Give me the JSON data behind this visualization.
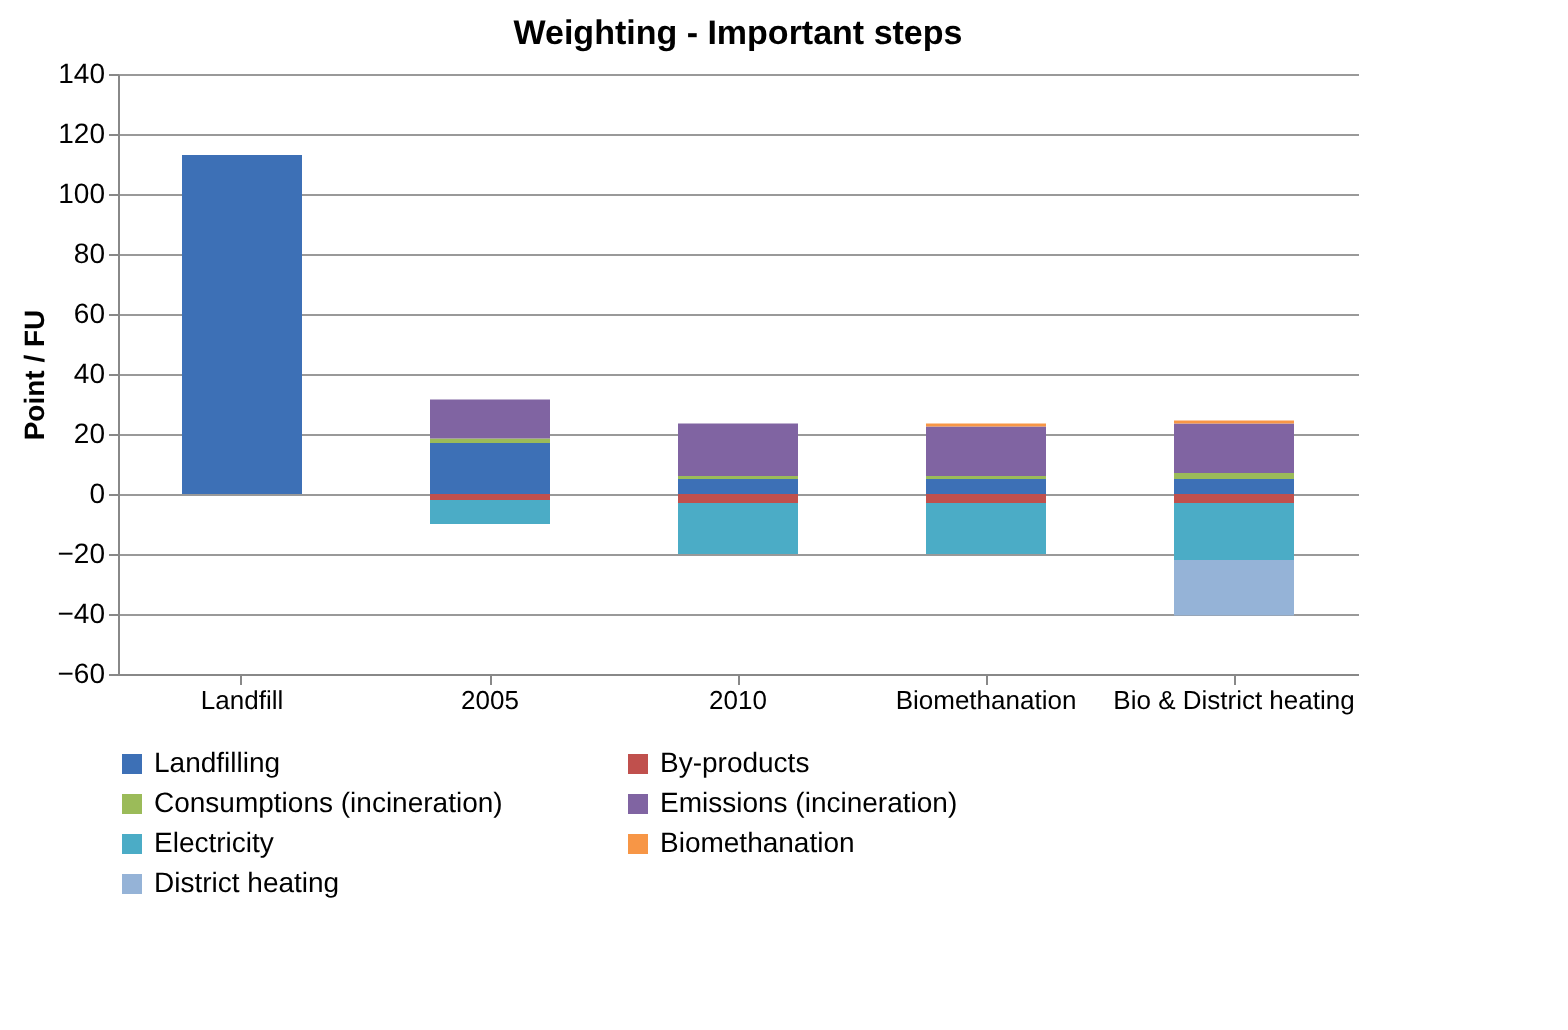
{
  "chart_data": {
    "type": "bar",
    "title": "Weighting - Important steps",
    "ylabel": "Point / FU",
    "categories": [
      "Landfill",
      "2005",
      "2010",
      "Biomethanation",
      "Bio & District heating"
    ],
    "stacked": true,
    "ylim": [
      -60,
      140
    ],
    "yticks": [
      -60,
      -40,
      -20,
      0,
      20,
      40,
      60,
      80,
      100,
      120,
      140
    ],
    "grid": "y",
    "legend": "bottom",
    "series": [
      {
        "name": "Landfilling",
        "color": "#3d70b6",
        "values": [
          113,
          17,
          5,
          5,
          5
        ]
      },
      {
        "name": "By-products",
        "color": "#c0504d",
        "values": [
          null,
          -2,
          -3,
          -3,
          -3
        ]
      },
      {
        "name": "Consumptions (incineration)",
        "color": "#9bbb59",
        "values": [
          null,
          1.5,
          1,
          1,
          2
        ]
      },
      {
        "name": "Emissions (incineration)",
        "color": "#8064a2",
        "values": [
          null,
          13,
          17.5,
          16.5,
          16.5
        ]
      },
      {
        "name": "Electricity",
        "color": "#4bacc6",
        "values": [
          null,
          -8,
          -17,
          -17,
          -19
        ]
      },
      {
        "name": "Biomethanation",
        "color": "#f79646",
        "values": [
          null,
          null,
          null,
          1,
          1
        ]
      },
      {
        "name": "District heating",
        "color": "#95b3d7",
        "values": [
          null,
          null,
          null,
          null,
          -18.5
        ]
      }
    ]
  }
}
